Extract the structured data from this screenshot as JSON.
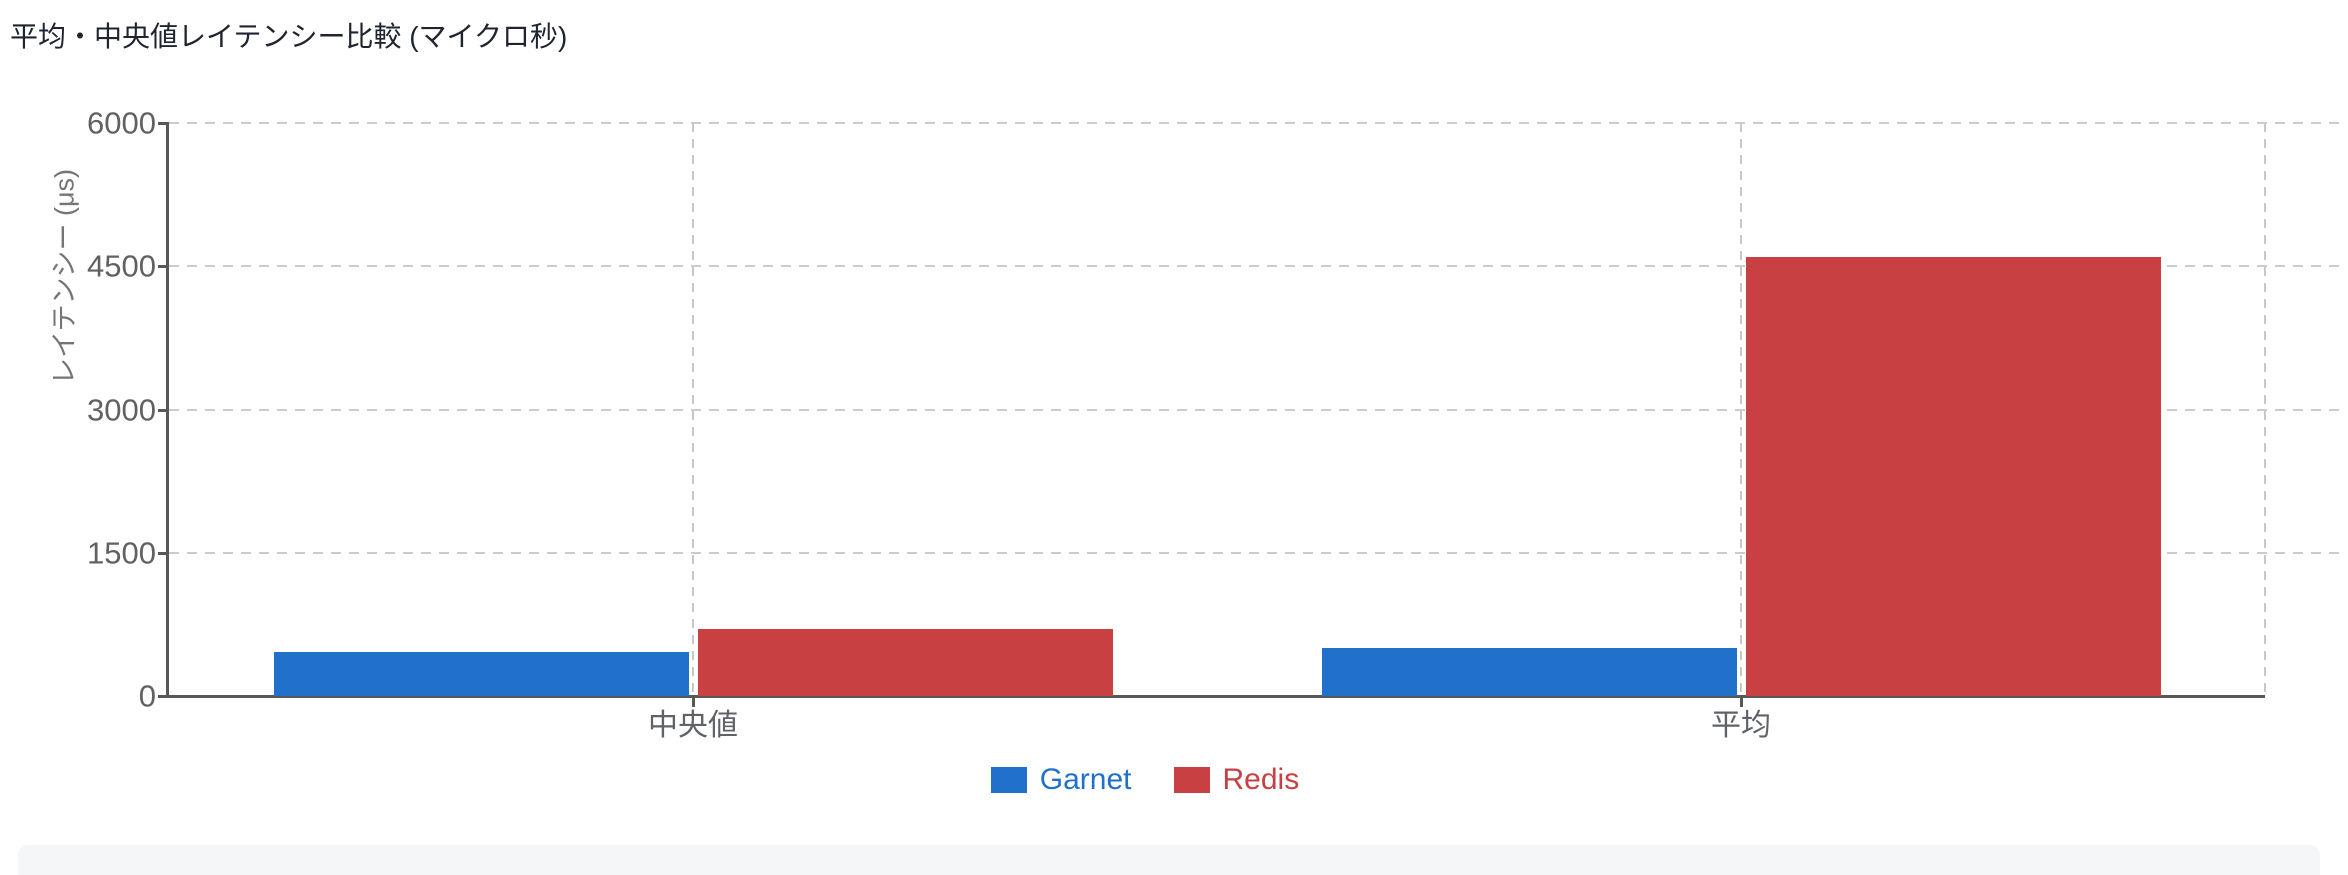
{
  "page": {
    "title": "平均・中央値レイテンシー比較 (マイクロ秒)"
  },
  "chart_data": {
    "type": "bar",
    "title": "平均・中央値レイテンシー比較 (マイクロ秒)",
    "categories": [
      "中央値",
      "平均"
    ],
    "series": [
      {
        "name": "Garnet",
        "color": "#2170c9",
        "values": [
          460,
          500
        ]
      },
      {
        "name": "Redis",
        "color": "#c94042",
        "values": [
          700,
          4600
        ]
      }
    ],
    "xlabel": "",
    "ylabel": "レイテンシー (μs)",
    "ylim": [
      0,
      6000
    ],
    "yticks": [
      0,
      1500,
      3000,
      4500,
      6000
    ],
    "grid": "dashed horizontal gridlines at yticks; dashed vertical lines at category centers and right edge",
    "legend_position": "bottom",
    "axis_color": "#585858",
    "grid_color": "#cccccc",
    "tick_label_color": "#616161",
    "category_label_color": "#5f6368",
    "ylabel_color": "#757575"
  }
}
